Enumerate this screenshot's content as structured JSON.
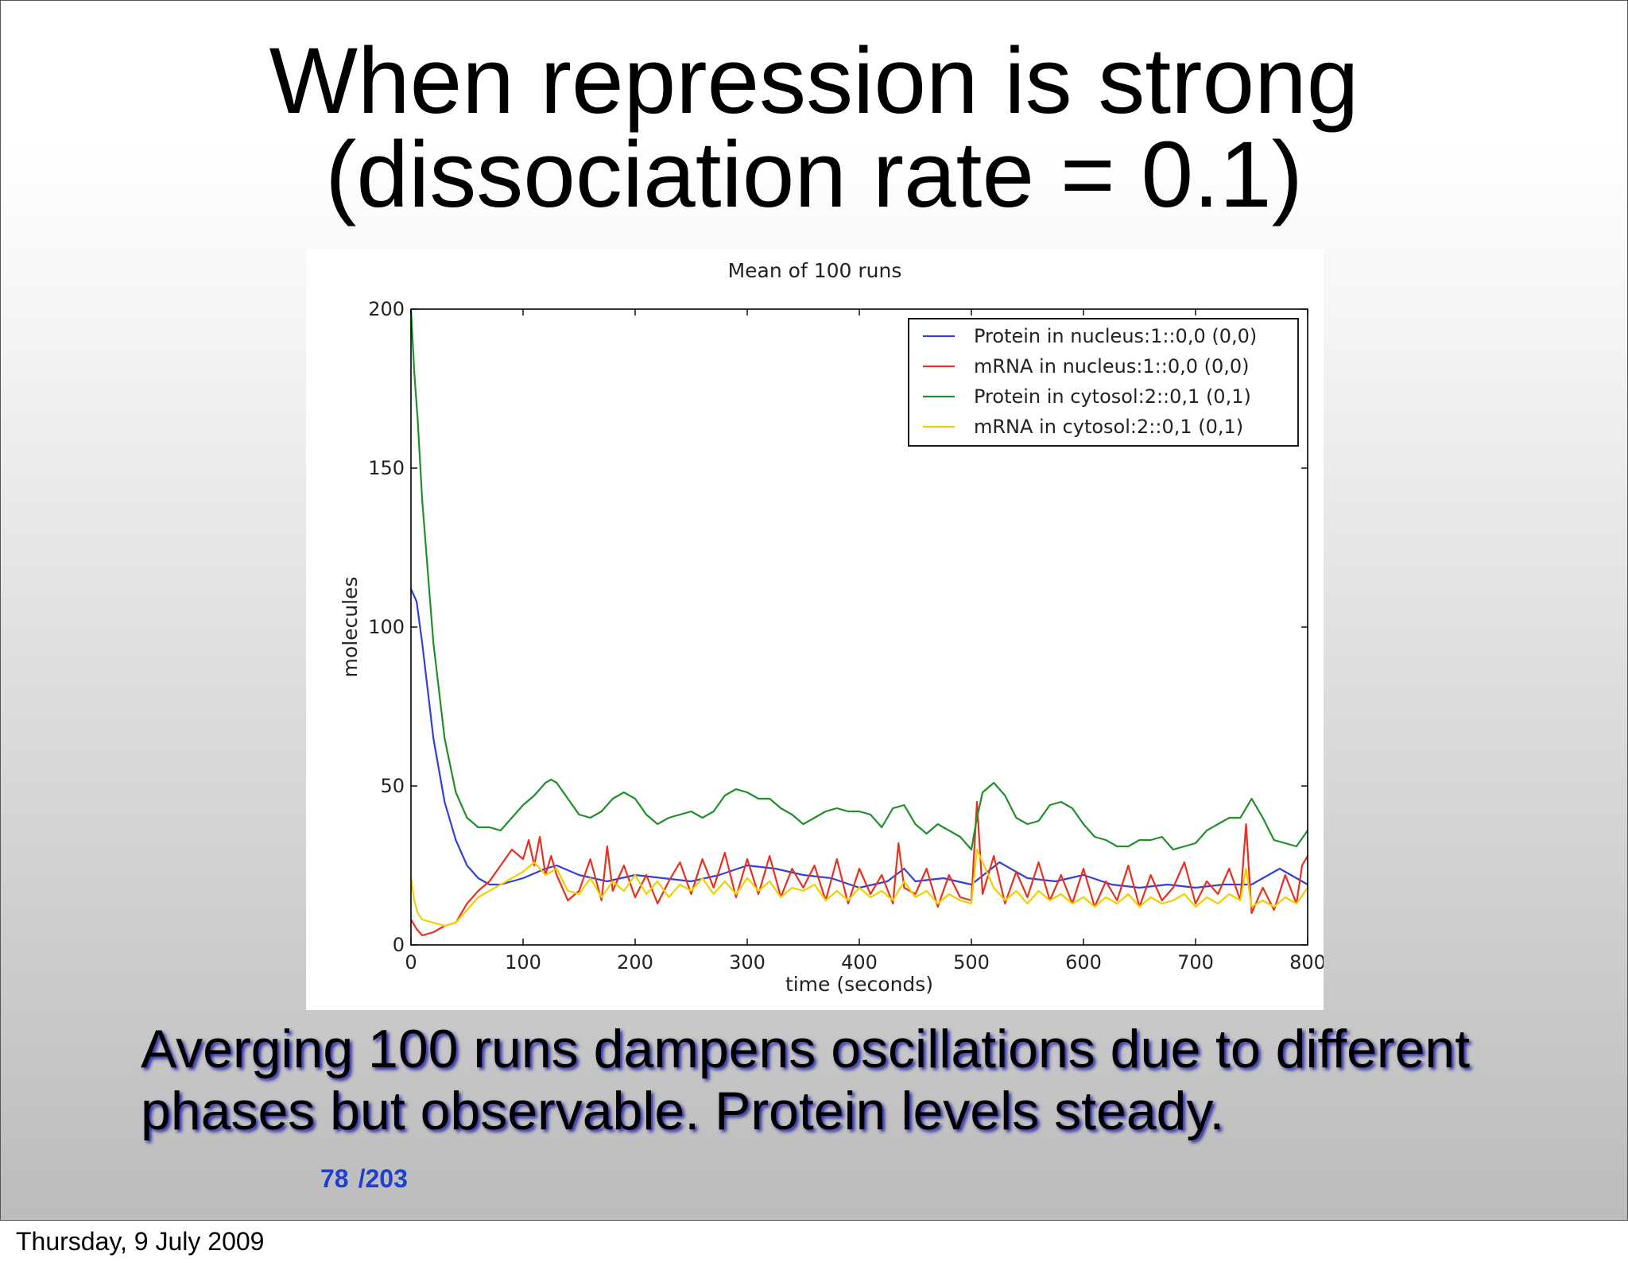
{
  "slide": {
    "title_line1": "When repression is strong",
    "title_line2": "(dissociation rate = 0.1)",
    "caption_line1": "Averging 100 runs dampens oscillations due to different",
    "caption_line2": "phases but observable. Protein levels steady.",
    "page_current": "78",
    "page_total": "/203",
    "footer_date": "Thursday, 9 July 2009"
  },
  "chart_data": {
    "type": "line",
    "title": "Mean of 100 runs",
    "xlabel": "time (seconds)",
    "ylabel": "molecules",
    "xlim": [
      0,
      800
    ],
    "ylim": [
      0,
      200
    ],
    "xticks": [
      0,
      100,
      200,
      300,
      400,
      500,
      600,
      700,
      800
    ],
    "xtick_labels": [
      "0",
      "100",
      "200",
      "300",
      "400",
      "500",
      "600",
      "700",
      "800"
    ],
    "yticks": [
      0,
      50,
      100,
      150,
      200
    ],
    "ytick_labels": [
      "0",
      "50",
      "100",
      "150",
      "200"
    ],
    "grid": false,
    "legend_position": "top-right",
    "series": [
      {
        "name": "Protein in nucleus:1::0,0 (0,0)",
        "color": "#3040d8",
        "x": [
          0,
          5,
          10,
          20,
          30,
          40,
          50,
          60,
          70,
          80,
          100,
          120,
          130,
          150,
          175,
          200,
          225,
          250,
          275,
          300,
          325,
          350,
          375,
          400,
          425,
          440,
          450,
          475,
          500,
          525,
          550,
          575,
          600,
          625,
          650,
          675,
          700,
          725,
          750,
          775,
          800
        ],
        "y": [
          112,
          108,
          95,
          65,
          45,
          33,
          25,
          21,
          19,
          19,
          21,
          24,
          25,
          22,
          20,
          22,
          21,
          20,
          22,
          25,
          24,
          22,
          21,
          18,
          20,
          24,
          20,
          21,
          19,
          26,
          21,
          20,
          22,
          19,
          18,
          19,
          18,
          19,
          19,
          24,
          19
        ]
      },
      {
        "name": "mRNA in nucleus:1::0,0 (0,0)",
        "color": "#e83020",
        "x": [
          0,
          5,
          10,
          20,
          30,
          40,
          50,
          60,
          70,
          80,
          90,
          100,
          105,
          110,
          115,
          120,
          125,
          130,
          140,
          150,
          160,
          170,
          175,
          180,
          190,
          200,
          210,
          220,
          230,
          240,
          250,
          260,
          270,
          280,
          290,
          300,
          310,
          320,
          330,
          340,
          350,
          360,
          370,
          380,
          390,
          400,
          410,
          420,
          430,
          435,
          440,
          450,
          460,
          470,
          480,
          490,
          500,
          505,
          510,
          520,
          530,
          540,
          550,
          560,
          570,
          580,
          590,
          600,
          610,
          620,
          630,
          640,
          650,
          660,
          670,
          680,
          690,
          700,
          710,
          720,
          730,
          740,
          745,
          750,
          760,
          770,
          780,
          790,
          795,
          800
        ],
        "y": [
          8,
          5,
          3,
          4,
          6,
          7,
          13,
          17,
          20,
          25,
          30,
          27,
          33,
          25,
          34,
          22,
          28,
          22,
          14,
          17,
          27,
          14,
          31,
          17,
          25,
          15,
          22,
          13,
          20,
          26,
          16,
          27,
          18,
          29,
          15,
          27,
          16,
          28,
          15,
          24,
          18,
          25,
          14,
          27,
          13,
          24,
          16,
          22,
          13,
          32,
          18,
          16,
          24,
          12,
          22,
          15,
          14,
          45,
          16,
          28,
          13,
          23,
          15,
          26,
          14,
          22,
          13,
          24,
          12,
          20,
          14,
          25,
          12,
          22,
          14,
          18,
          26,
          13,
          20,
          16,
          24,
          14,
          38,
          10,
          18,
          11,
          22,
          13,
          25,
          28
        ]
      },
      {
        "name": "Protein in cytosol:2::0,1 (0,1)",
        "color": "#209028",
        "x": [
          0,
          3,
          6,
          10,
          20,
          30,
          40,
          50,
          60,
          70,
          80,
          90,
          100,
          110,
          120,
          125,
          130,
          140,
          150,
          160,
          170,
          180,
          190,
          200,
          210,
          220,
          230,
          240,
          250,
          260,
          270,
          280,
          290,
          300,
          310,
          320,
          330,
          340,
          350,
          360,
          370,
          380,
          390,
          400,
          410,
          420,
          430,
          440,
          450,
          460,
          470,
          480,
          490,
          500,
          505,
          510,
          520,
          530,
          540,
          550,
          560,
          570,
          580,
          590,
          600,
          610,
          620,
          630,
          640,
          650,
          660,
          670,
          680,
          690,
          700,
          710,
          720,
          730,
          740,
          750,
          760,
          770,
          780,
          790,
          800
        ],
        "y": [
          200,
          180,
          165,
          140,
          95,
          65,
          48,
          40,
          37,
          37,
          36,
          40,
          44,
          47,
          51,
          52,
          51,
          46,
          41,
          40,
          42,
          46,
          48,
          46,
          41,
          38,
          40,
          41,
          42,
          40,
          42,
          47,
          49,
          48,
          46,
          46,
          43,
          41,
          38,
          40,
          42,
          43,
          42,
          42,
          41,
          37,
          43,
          44,
          38,
          35,
          38,
          36,
          34,
          30,
          40,
          48,
          51,
          47,
          40,
          38,
          39,
          44,
          45,
          43,
          38,
          34,
          33,
          31,
          31,
          33,
          33,
          34,
          30,
          31,
          32,
          36,
          38,
          40,
          40,
          46,
          40,
          33,
          32,
          31,
          36
        ]
      },
      {
        "name": "mRNA in cytosol:2::0,1 (0,1)",
        "color": "#f0d000",
        "x": [
          0,
          3,
          6,
          10,
          20,
          30,
          40,
          50,
          60,
          70,
          80,
          90,
          100,
          110,
          120,
          130,
          140,
          150,
          160,
          170,
          180,
          190,
          200,
          210,
          220,
          230,
          240,
          250,
          260,
          270,
          280,
          290,
          300,
          310,
          320,
          330,
          340,
          350,
          360,
          370,
          380,
          390,
          400,
          410,
          420,
          430,
          440,
          450,
          460,
          470,
          480,
          490,
          500,
          505,
          510,
          520,
          530,
          540,
          550,
          560,
          570,
          580,
          590,
          600,
          610,
          620,
          630,
          640,
          650,
          660,
          670,
          680,
          690,
          700,
          710,
          720,
          730,
          740,
          745,
          750,
          760,
          770,
          780,
          790,
          800
        ],
        "y": [
          21,
          14,
          10,
          8,
          7,
          6,
          7,
          11,
          15,
          17,
          19,
          21,
          23,
          26,
          22,
          24,
          17,
          16,
          21,
          15,
          20,
          17,
          22,
          16,
          20,
          15,
          19,
          17,
          21,
          16,
          20,
          16,
          21,
          17,
          20,
          15,
          18,
          17,
          19,
          14,
          17,
          14,
          18,
          15,
          17,
          14,
          20,
          15,
          17,
          13,
          16,
          14,
          13,
          30,
          26,
          18,
          14,
          17,
          13,
          17,
          14,
          16,
          13,
          15,
          12,
          15,
          13,
          16,
          12,
          15,
          13,
          14,
          16,
          12,
          15,
          13,
          16,
          14,
          24,
          12,
          14,
          12,
          15,
          13,
          18
        ]
      }
    ]
  }
}
